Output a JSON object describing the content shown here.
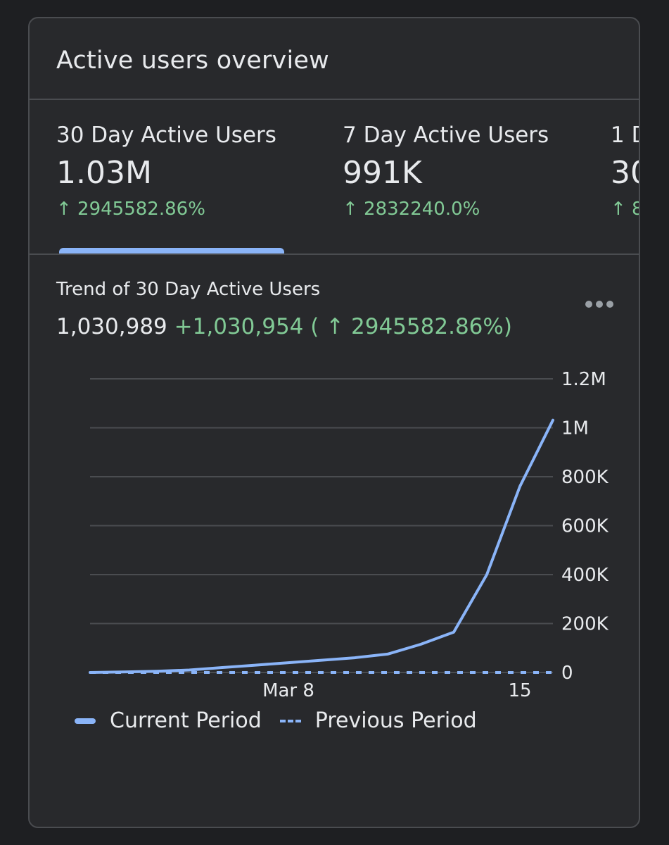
{
  "card": {
    "title": "Active users overview"
  },
  "metrics": [
    {
      "label": "30 Day Active Users",
      "value": "1.03M",
      "change": "↑ 2945582.86%"
    },
    {
      "label": "7 Day Active Users",
      "value": "991K",
      "change": "↑ 2832240.0%"
    },
    {
      "label": "1 D",
      "value": "30",
      "change": "↑ 8"
    }
  ],
  "trend": {
    "title": "Trend of 30 Day Active Users",
    "total": "1,030,989",
    "delta": "+1,030,954",
    "pct": "( ↑ 2945582.86%)"
  },
  "legend": {
    "current": "Current Period",
    "previous": "Previous Period"
  },
  "colors": {
    "line": "#8ab4f8",
    "positive": "#81c995",
    "grid": "#4a4c50"
  },
  "chart_data": {
    "type": "line",
    "x_ticks": [
      {
        "day": 8,
        "label": "Mar 8"
      },
      {
        "day": 15,
        "label": "15"
      }
    ],
    "y_ticks": [
      {
        "value": 0,
        "label": "0"
      },
      {
        "value": 200000,
        "label": "200K"
      },
      {
        "value": 400000,
        "label": "400K"
      },
      {
        "value": 600000,
        "label": "600K"
      },
      {
        "value": 800000,
        "label": "800K"
      },
      {
        "value": 1000000,
        "label": "1M"
      },
      {
        "value": 1200000,
        "label": "1.2M"
      }
    ],
    "ylim": [
      0,
      1200000
    ],
    "xlim": [
      2,
      16
    ],
    "grid": true,
    "legend_position": "bottom-left",
    "series": [
      {
        "name": "Current Period",
        "style": "solid",
        "x": [
          2,
          3,
          4,
          5,
          6,
          7,
          8,
          9,
          10,
          11,
          12,
          13,
          14,
          15,
          16
        ],
        "y": [
          35,
          2000,
          5000,
          10000,
          20000,
          30000,
          40000,
          50000,
          60000,
          75000,
          115000,
          165000,
          400000,
          760000,
          1030989
        ]
      },
      {
        "name": "Previous Period",
        "style": "dashed",
        "x": [
          2,
          3,
          4,
          5,
          6,
          7,
          8,
          9,
          10,
          11,
          12,
          13,
          14,
          15,
          16
        ],
        "y": [
          0,
          0,
          0,
          0,
          0,
          0,
          0,
          0,
          0,
          0,
          0,
          0,
          0,
          0,
          35
        ]
      }
    ]
  }
}
